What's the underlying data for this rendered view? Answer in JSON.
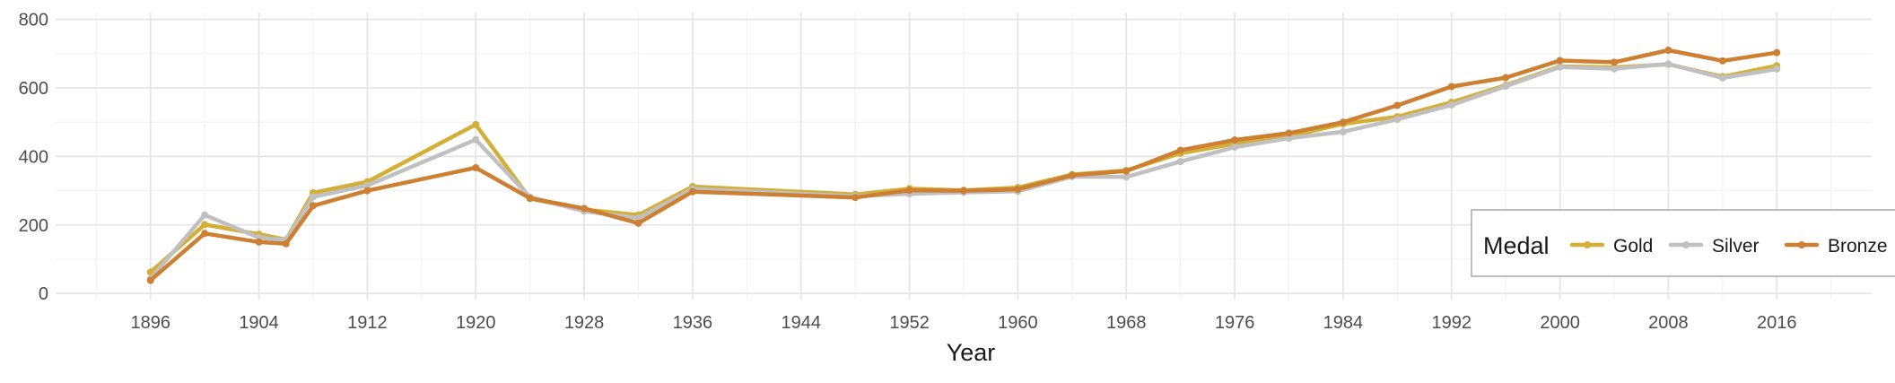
{
  "chart_data": {
    "type": "line",
    "title": "",
    "xlabel": "Year",
    "ylabel": "",
    "xlim": [
      1889,
      2023
    ],
    "ylim": [
      -18,
      820
    ],
    "x_ticks": [
      1896,
      1904,
      1912,
      1920,
      1928,
      1936,
      1944,
      1952,
      1960,
      1968,
      1976,
      1984,
      1992,
      2000,
      2008,
      2016
    ],
    "y_ticks": [
      0,
      200,
      400,
      600,
      800
    ],
    "grid": true,
    "legend": {
      "title": "Medal",
      "placement": "bottom-right"
    },
    "x": [
      1896,
      1900,
      1904,
      1906,
      1908,
      1912,
      1920,
      1924,
      1928,
      1932,
      1936,
      1948,
      1952,
      1956,
      1960,
      1964,
      1968,
      1972,
      1976,
      1980,
      1984,
      1988,
      1992,
      1996,
      2000,
      2004,
      2008,
      2012,
      2016
    ],
    "series": [
      {
        "name": "Gold",
        "color": "#D4AF37",
        "values": [
          62,
          201,
          173,
          157,
          294,
          326,
          493,
          277,
          245,
          229,
          312,
          289,
          306,
          301,
          309,
          347,
          359,
          409,
          437,
          458,
          495,
          516,
          558,
          608,
          663,
          660,
          669,
          633,
          665
        ]
      },
      {
        "name": "Silver",
        "color": "#C0C0C0",
        "values": [
          43,
          229,
          163,
          156,
          282,
          315,
          449,
          281,
          240,
          220,
          305,
          284,
          291,
          295,
          298,
          341,
          340,
          385,
          427,
          453,
          472,
          508,
          550,
          605,
          661,
          656,
          670,
          629,
          655
        ]
      },
      {
        "name": "Bronze",
        "color": "#CD7F32",
        "values": [
          38,
          175,
          150,
          145,
          256,
          300,
          367,
          278,
          248,
          205,
          297,
          280,
          301,
          300,
          304,
          345,
          357,
          418,
          448,
          468,
          500,
          549,
          604,
          630,
          680,
          675,
          710,
          679,
          703
        ]
      }
    ]
  }
}
